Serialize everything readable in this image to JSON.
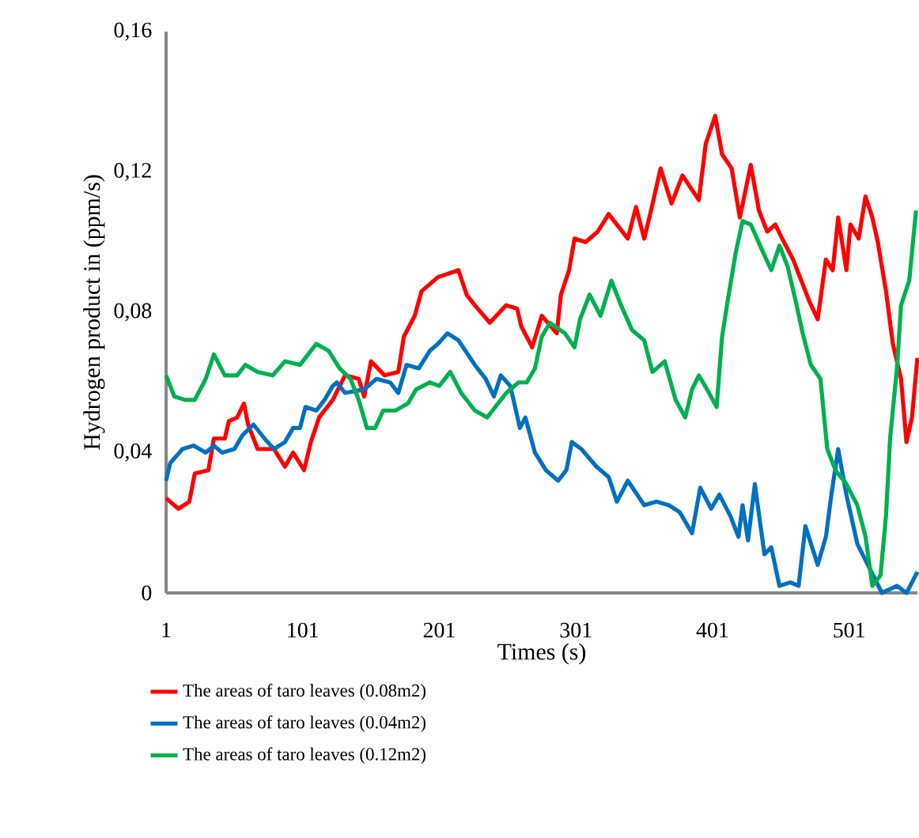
{
  "chart_data": {
    "type": "line",
    "xlabel": "Times (s)",
    "ylabel": "Hydrogen product in (ppm/s)",
    "xlim": [
      1,
      551
    ],
    "xticks": [
      1,
      101,
      201,
      301,
      401,
      501
    ],
    "ylim": [
      0,
      0.16
    ],
    "yticks": [
      0,
      {
        "value": 0.04,
        "label": "0,04"
      },
      {
        "value": 0.08,
        "label": "0,08"
      },
      {
        "value": 0.12,
        "label": "0,12"
      },
      {
        "value": 0.16,
        "label": "0,16"
      }
    ],
    "grid": false,
    "legend": "bottom",
    "marker": "none",
    "line_style": "solid",
    "series": [
      {
        "name": "The areas of taro leaves (0.08m2)",
        "color": "#ff0000",
        "x": [
          1,
          10,
          18,
          22,
          32,
          36,
          44,
          47,
          53,
          58,
          61,
          68,
          80,
          88,
          94,
          102,
          107,
          113,
          123,
          132,
          142,
          146,
          151,
          161,
          171,
          175,
          183,
          188,
          200,
          215,
          221,
          227,
          238,
          250,
          258,
          261,
          269,
          276,
          287,
          290,
          296,
          300,
          308,
          317,
          325,
          331,
          339,
          345,
          351,
          356,
          363,
          371,
          379,
          391,
          396,
          403,
          408,
          415,
          421,
          429,
          435,
          441,
          447,
          452,
          460,
          466,
          472,
          478,
          484,
          489,
          493,
          499,
          502,
          508,
          513,
          518,
          522,
          528,
          533,
          539,
          543,
          547,
          551
        ],
        "values": [
          0.027,
          0.024,
          0.026,
          0.034,
          0.035,
          0.044,
          0.044,
          0.049,
          0.05,
          0.054,
          0.048,
          0.041,
          0.041,
          0.036,
          0.04,
          0.035,
          0.043,
          0.05,
          0.055,
          0.062,
          0.061,
          0.056,
          0.066,
          0.062,
          0.063,
          0.073,
          0.079,
          0.086,
          0.09,
          0.092,
          0.085,
          0.082,
          0.077,
          0.082,
          0.081,
          0.076,
          0.07,
          0.079,
          0.074,
          0.085,
          0.092,
          0.101,
          0.1,
          0.103,
          0.108,
          0.105,
          0.101,
          0.11,
          0.101,
          0.109,
          0.121,
          0.111,
          0.119,
          0.112,
          0.128,
          0.136,
          0.125,
          0.121,
          0.107,
          0.122,
          0.109,
          0.103,
          0.105,
          0.101,
          0.095,
          0.089,
          0.083,
          0.078,
          0.095,
          0.092,
          0.107,
          0.092,
          0.105,
          0.101,
          0.113,
          0.107,
          0.1,
          0.086,
          0.071,
          0.061,
          0.043,
          0.05,
          0.067
        ]
      },
      {
        "name": "The areas of taro leaves (0.04m2)",
        "color": "#0070c0",
        "x": [
          1,
          4,
          13,
          21,
          30,
          36,
          42,
          51,
          57,
          65,
          73,
          80,
          88,
          94,
          99,
          103,
          111,
          117,
          123,
          126,
          132,
          146,
          155,
          165,
          171,
          177,
          186,
          194,
          200,
          207,
          215,
          227,
          235,
          241,
          246,
          253,
          260,
          264,
          271,
          279,
          288,
          294,
          298,
          305,
          316,
          325,
          331,
          339,
          351,
          360,
          369,
          377,
          386,
          392,
          400,
          406,
          414,
          420,
          423,
          427,
          432,
          439,
          444,
          450,
          458,
          464,
          469,
          478,
          484,
          488,
          493,
          499,
          507,
          516,
          525,
          536,
          543,
          551
        ],
        "values": [
          0.032,
          0.037,
          0.041,
          0.042,
          0.04,
          0.042,
          0.04,
          0.041,
          0.045,
          0.048,
          0.044,
          0.041,
          0.043,
          0.047,
          0.047,
          0.053,
          0.052,
          0.055,
          0.059,
          0.06,
          0.057,
          0.058,
          0.061,
          0.06,
          0.057,
          0.065,
          0.064,
          0.069,
          0.071,
          0.074,
          0.072,
          0.065,
          0.061,
          0.056,
          0.062,
          0.059,
          0.047,
          0.05,
          0.04,
          0.035,
          0.032,
          0.035,
          0.043,
          0.041,
          0.036,
          0.033,
          0.026,
          0.032,
          0.025,
          0.026,
          0.025,
          0.023,
          0.017,
          0.03,
          0.024,
          0.028,
          0.022,
          0.016,
          0.025,
          0.015,
          0.031,
          0.011,
          0.013,
          0.002,
          0.003,
          0.002,
          0.019,
          0.008,
          0.016,
          0.028,
          0.041,
          0.028,
          0.014,
          0.007,
          0,
          0.002,
          0,
          0.006
        ]
      },
      {
        "name": "The areas of taro leaves (0.12m2)",
        "color": "#00b050",
        "x": [
          1,
          7,
          15,
          22,
          30,
          36,
          44,
          53,
          59,
          68,
          79,
          88,
          99,
          111,
          120,
          128,
          136,
          142,
          148,
          154,
          160,
          169,
          178,
          184,
          194,
          201,
          209,
          217,
          227,
          236,
          242,
          250,
          259,
          265,
          271,
          276,
          282,
          293,
          300,
          304,
          311,
          319,
          327,
          334,
          342,
          351,
          357,
          366,
          374,
          381,
          386,
          391,
          397,
          404,
          408,
          412,
          418,
          423,
          429,
          437,
          444,
          450,
          456,
          462,
          467,
          473,
          480,
          485,
          491,
          499,
          507,
          513,
          518,
          524,
          528,
          531,
          536,
          539,
          545,
          550
        ],
        "values": [
          0.062,
          0.056,
          0.055,
          0.055,
          0.061,
          0.068,
          0.062,
          0.062,
          0.065,
          0.063,
          0.062,
          0.066,
          0.065,
          0.071,
          0.069,
          0.064,
          0.061,
          0.055,
          0.047,
          0.047,
          0.052,
          0.052,
          0.054,
          0.058,
          0.06,
          0.059,
          0.063,
          0.057,
          0.052,
          0.05,
          0.053,
          0.057,
          0.06,
          0.06,
          0.064,
          0.073,
          0.077,
          0.074,
          0.07,
          0.078,
          0.085,
          0.079,
          0.089,
          0.082,
          0.075,
          0.072,
          0.063,
          0.066,
          0.055,
          0.05,
          0.058,
          0.062,
          0.058,
          0.053,
          0.073,
          0.083,
          0.097,
          0.106,
          0.105,
          0.098,
          0.092,
          0.099,
          0.093,
          0.083,
          0.074,
          0.065,
          0.061,
          0.041,
          0.035,
          0.031,
          0.025,
          0.016,
          0.002,
          0.005,
          0.022,
          0.044,
          0.064,
          0.082,
          0.089,
          0.109
        ]
      }
    ]
  }
}
